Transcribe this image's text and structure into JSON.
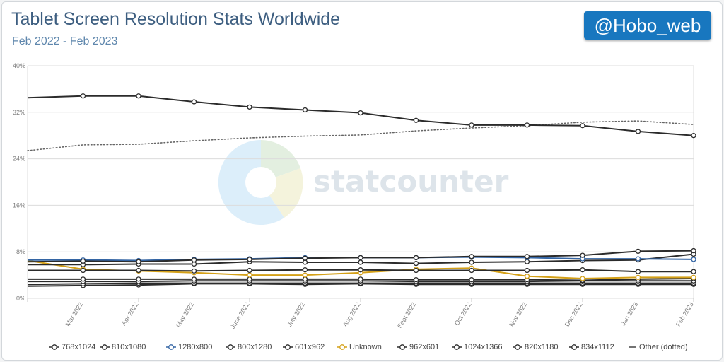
{
  "header": {
    "title": "Tablet Screen Resolution Stats Worldwide",
    "subtitle": "Feb 2022 - Feb 2023",
    "handle": "@Hobo_web"
  },
  "watermark": {
    "text": "statcounter"
  },
  "chart_data": {
    "type": "line",
    "title": "Tablet Screen Resolution Stats Worldwide",
    "subtitle": "Feb 2022 - Feb 2023",
    "xlabel": "",
    "ylabel": "",
    "x": [
      "",
      "Mar 2022",
      "Apr 2022",
      "May 2022",
      "June 2022",
      "July 2022",
      "Aug 2022",
      "Sept 2022",
      "Oct 2022",
      "Nov 2022",
      "Dec 2022",
      "Jan 2023",
      "Feb 2023"
    ],
    "ylim": [
      0,
      40
    ],
    "yticks": [
      0,
      8,
      16,
      24,
      32,
      40
    ],
    "ytick_labels": [
      "0%",
      "8%",
      "16%",
      "24%",
      "32%",
      "40%"
    ],
    "grid": true,
    "legend_position": "bottom",
    "series": [
      {
        "name": "768x1024",
        "color": "#2b2b2b",
        "values": [
          34.5,
          34.8,
          34.8,
          33.8,
          32.9,
          32.4,
          31.9,
          30.6,
          29.8,
          29.8,
          29.7,
          28.7,
          28.0
        ]
      },
      {
        "name": "810x1080",
        "color": "#2b2b2b",
        "values": [
          6.3,
          6.4,
          6.3,
          6.6,
          6.7,
          6.9,
          7.0,
          7.0,
          7.2,
          7.2,
          7.4,
          8.1,
          8.2
        ]
      },
      {
        "name": "1280x800",
        "color": "#3465a4",
        "values": [
          6.6,
          6.6,
          6.5,
          6.7,
          6.8,
          7.0,
          7.0,
          7.0,
          7.1,
          7.0,
          6.8,
          6.8,
          6.7
        ]
      },
      {
        "name": "800x1280",
        "color": "#2b2b2b",
        "values": [
          5.8,
          5.8,
          5.9,
          5.9,
          6.3,
          6.2,
          6.2,
          6.0,
          6.2,
          6.3,
          6.5,
          6.6,
          7.6
        ]
      },
      {
        "name": "601x962",
        "color": "#2b2b2b",
        "values": [
          4.8,
          4.8,
          4.8,
          4.7,
          4.8,
          4.9,
          4.9,
          4.8,
          4.8,
          4.8,
          4.9,
          4.6,
          4.6
        ]
      },
      {
        "name": "Unknown",
        "color": "#d4a017",
        "values": [
          6.5,
          5.0,
          4.7,
          4.4,
          4.0,
          4.0,
          4.4,
          5.0,
          5.2,
          3.8,
          3.4,
          3.6,
          3.6
        ]
      },
      {
        "name": "962x601",
        "color": "#2b2b2b",
        "values": [
          3.3,
          3.3,
          3.3,
          3.3,
          3.3,
          3.3,
          3.3,
          3.2,
          3.2,
          3.2,
          3.1,
          3.3,
          3.4
        ]
      },
      {
        "name": "1024x1366",
        "color": "#2b2b2b",
        "values": [
          2.9,
          2.9,
          2.9,
          3.0,
          3.0,
          3.0,
          3.0,
          2.9,
          2.9,
          2.9,
          3.0,
          3.0,
          3.0
        ]
      },
      {
        "name": "820x1180",
        "color": "#2b2b2b",
        "values": [
          2.4,
          2.5,
          2.6,
          2.6,
          2.6,
          2.6,
          2.6,
          2.6,
          2.6,
          2.6,
          2.6,
          2.6,
          2.6
        ]
      },
      {
        "name": "834x1112",
        "color": "#2b2b2b",
        "values": [
          2.1,
          2.2,
          2.3,
          2.5,
          2.5,
          2.4,
          2.5,
          2.4,
          2.4,
          2.4,
          2.4,
          2.4,
          2.4
        ]
      },
      {
        "name": "Other (dotted)",
        "color": "#666666",
        "dotted": true,
        "values": [
          25.4,
          26.4,
          26.5,
          27.1,
          27.6,
          27.9,
          28.1,
          28.8,
          29.3,
          29.7,
          30.3,
          30.5,
          29.9
        ]
      }
    ]
  }
}
